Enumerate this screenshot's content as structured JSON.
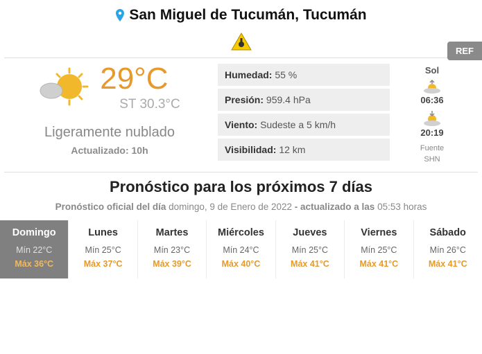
{
  "location": "San Miguel de Tucumán, Tucumán",
  "ref_label": "REF",
  "current": {
    "temp": "29°C",
    "st_label": "ST 30.3°C",
    "condition": "Ligeramente nublado",
    "updated": "Actualizado: 10h"
  },
  "metrics": [
    {
      "label": "Humedad:",
      "value": " 55 %"
    },
    {
      "label": "Presión:",
      "value": " 959.4 hPa"
    },
    {
      "label": "Viento:",
      "value": " Sudeste a 5 km/h"
    },
    {
      "label": "Visibilidad:",
      "value": " 12 km"
    }
  ],
  "sun": {
    "title": "Sol",
    "sunrise": "06:36",
    "sunset": "20:19",
    "source_label": "Fuente",
    "source_value": "SHN"
  },
  "forecast": {
    "title": "Pronóstico para los próximos 7 días",
    "subtitle_prefix": "Pronóstico oficial del día ",
    "subtitle_date": "domingo, 9 de Enero de 2022",
    "subtitle_suffix1": " - actualizado a las ",
    "subtitle_time": "05:53",
    "subtitle_suffix2": " horas",
    "days": [
      {
        "name": "Domingo",
        "min": "Mín 22°C",
        "max": "Máx 36°C",
        "active": true
      },
      {
        "name": "Lunes",
        "min": "Mín 25°C",
        "max": "Máx 37°C",
        "active": false
      },
      {
        "name": "Martes",
        "min": "Mín 23°C",
        "max": "Máx 39°C",
        "active": false
      },
      {
        "name": "Miércoles",
        "min": "Mín 24°C",
        "max": "Máx 40°C",
        "active": false
      },
      {
        "name": "Jueves",
        "min": "Mín 25°C",
        "max": "Máx 41°C",
        "active": false
      },
      {
        "name": "Viernes",
        "min": "Mín 25°C",
        "max": "Máx 41°C",
        "active": false
      },
      {
        "name": "Sábado",
        "min": "Mín 26°C",
        "max": "Máx 41°C",
        "active": false
      }
    ]
  },
  "colors": {
    "accent_orange": "#e59a2b",
    "muted_gray": "#888888",
    "metric_bg": "#eeeeee",
    "active_day_bg": "#808080"
  }
}
